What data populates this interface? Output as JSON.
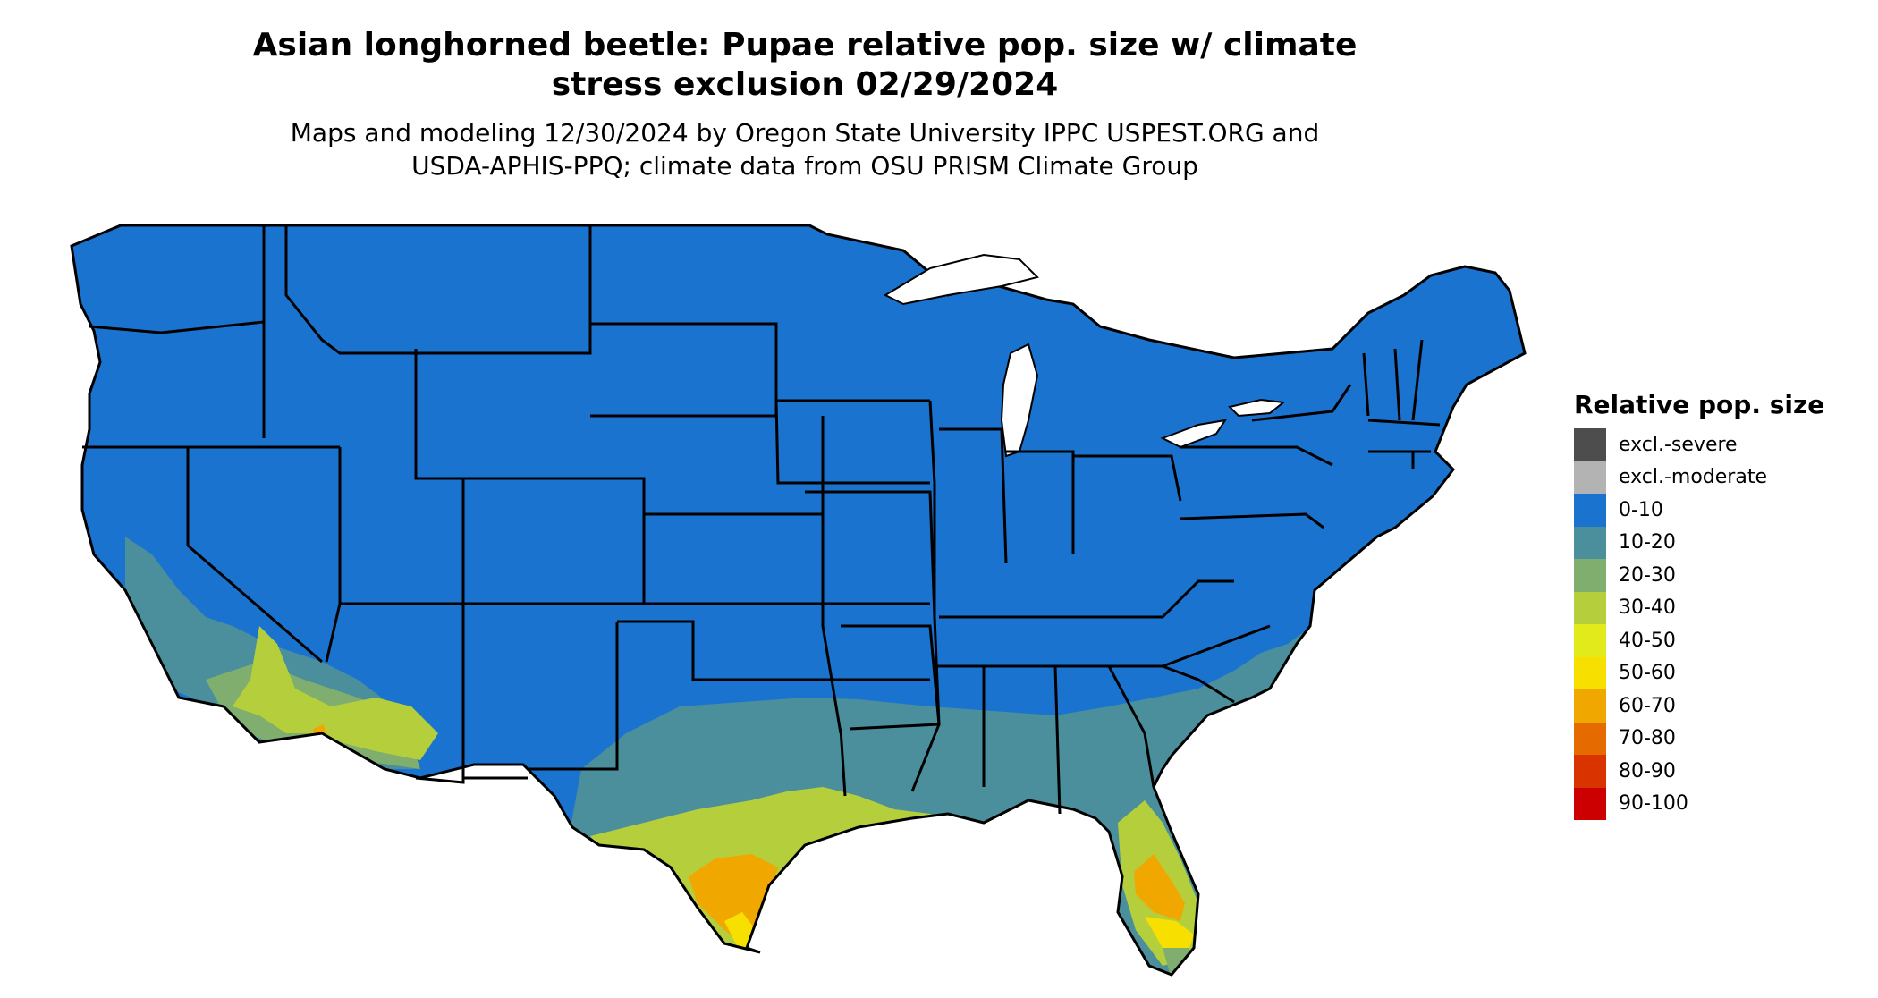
{
  "title_line1": "Asian longhorned beetle: Pupae relative pop. size w/ climate",
  "title_line2": "stress exclusion 02/29/2024",
  "subtitle_line1": "Maps and modeling 12/30/2024 by Oregon State University IPPC USPEST.ORG and",
  "subtitle_line2": "USDA-APHIS-PPQ; climate data from OSU PRISM Climate Group",
  "legend": {
    "title": "Relative pop. size",
    "items": [
      {
        "label": "excl.-severe",
        "color": "#4d4d4d"
      },
      {
        "label": "excl.-moderate",
        "color": "#b3b3b3"
      },
      {
        "label": "0-10",
        "color": "#1a73cf"
      },
      {
        "label": "10-20",
        "color": "#4a8f9b"
      },
      {
        "label": "20-30",
        "color": "#7fae6e"
      },
      {
        "label": "30-40",
        "color": "#b5cf3c"
      },
      {
        "label": "40-50",
        "color": "#e3ea1c"
      },
      {
        "label": "50-60",
        "color": "#f7e000"
      },
      {
        "label": "60-70",
        "color": "#f0a800"
      },
      {
        "label": "70-80",
        "color": "#e56a00"
      },
      {
        "label": "80-90",
        "color": "#d93300"
      },
      {
        "label": "90-100",
        "color": "#cc0000"
      }
    ]
  },
  "colors": {
    "background": "#ffffff",
    "state_border": "#000000"
  }
}
